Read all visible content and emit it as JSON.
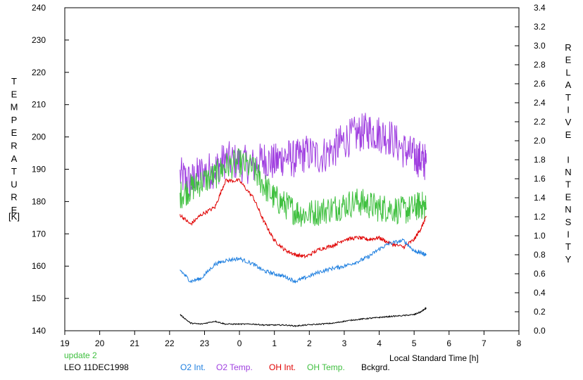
{
  "chart_data": {
    "type": "line",
    "left_axis": {
      "label": "TEMPERATURE",
      "unit": "[K]",
      "ylim": [
        140,
        240
      ],
      "ticks": [
        140,
        150,
        160,
        170,
        180,
        190,
        200,
        210,
        220,
        230,
        240
      ],
      "tick_labels": [
        "140",
        "150",
        "160",
        "170",
        "180",
        "190",
        "200",
        "210",
        "220",
        "230",
        "240"
      ]
    },
    "right_axis": {
      "label": "RELATIVE INTENSITY",
      "ylim": [
        0.0,
        3.4
      ],
      "ticks": [
        0.0,
        0.2,
        0.4,
        0.6,
        0.8,
        1.0,
        1.2,
        1.4,
        1.6,
        1.8,
        2.0,
        2.2,
        2.4,
        2.6,
        2.8,
        3.0,
        3.2,
        3.4
      ],
      "tick_labels": [
        "0.0",
        "0.2",
        "0.4",
        "0.6",
        "0.8",
        "1.0",
        "1.2",
        "1.4",
        "1.6",
        "1.8",
        "2.0",
        "2.2",
        "2.4",
        "2.6",
        "2.8",
        "3.0",
        "3.2",
        "3.4"
      ]
    },
    "x_axis": {
      "label": "Local Standard Time [h]",
      "xlim": [
        19,
        32
      ],
      "ticks": [
        19,
        20,
        21,
        22,
        23,
        24,
        25,
        26,
        27,
        28,
        29,
        30,
        31,
        32
      ],
      "tick_labels": [
        "19",
        "20",
        "21",
        "22",
        "23",
        "0",
        "1",
        "2",
        "3",
        "4",
        "5",
        "6",
        "7",
        "8"
      ]
    },
    "series": [
      {
        "name": "O2 Int.",
        "axis": "right",
        "color": "#2080e0",
        "x": [
          22.3,
          22.6,
          22.9,
          23.3,
          23.6,
          24.0,
          24.4,
          24.7,
          25.0,
          25.3,
          25.6,
          25.9,
          26.3,
          26.7,
          27.0,
          27.4,
          27.7,
          28.0,
          28.3,
          28.7,
          29.0,
          29.2,
          29.35
        ],
        "y": [
          0.64,
          0.52,
          0.55,
          0.7,
          0.74,
          0.76,
          0.7,
          0.63,
          0.6,
          0.57,
          0.52,
          0.56,
          0.62,
          0.66,
          0.68,
          0.73,
          0.78,
          0.86,
          0.92,
          0.95,
          0.84,
          0.82,
          0.8
        ]
      },
      {
        "name": "O2 Temp.",
        "axis": "left",
        "color": "#a040e0",
        "x": [
          22.3,
          22.6,
          22.9,
          23.3,
          23.6,
          24.0,
          24.4,
          24.7,
          25.0,
          25.3,
          25.6,
          25.9,
          26.3,
          26.7,
          27.0,
          27.4,
          27.7,
          28.0,
          28.3,
          28.7,
          29.0,
          29.2,
          29.35
        ],
        "y": [
          188,
          186,
          189,
          190,
          193,
          192,
          191,
          193,
          192,
          194,
          193,
          195,
          194,
          196,
          199,
          201,
          202,
          201,
          200,
          196,
          194,
          193,
          192
        ]
      },
      {
        "name": "OH Int.",
        "axis": "right",
        "color": "#e00000",
        "x": [
          22.3,
          22.6,
          22.9,
          23.3,
          23.6,
          24.0,
          24.4,
          24.7,
          25.0,
          25.3,
          25.6,
          25.9,
          26.3,
          26.7,
          27.0,
          27.4,
          27.7,
          28.0,
          28.3,
          28.7,
          29.0,
          29.2,
          29.35
        ],
        "y": [
          1.22,
          1.12,
          1.22,
          1.3,
          1.58,
          1.58,
          1.4,
          1.15,
          0.95,
          0.85,
          0.8,
          0.78,
          0.86,
          0.9,
          0.96,
          0.98,
          0.96,
          0.98,
          0.92,
          0.88,
          0.96,
          1.08,
          1.2
        ]
      },
      {
        "name": "OH Temp.",
        "axis": "left",
        "color": "#40c040",
        "x": [
          22.3,
          22.6,
          22.9,
          23.3,
          23.6,
          24.0,
          24.4,
          24.7,
          25.0,
          25.3,
          25.6,
          25.9,
          26.3,
          26.7,
          27.0,
          27.4,
          27.7,
          28.0,
          28.3,
          28.7,
          29.0,
          29.2,
          29.35
        ],
        "y": [
          182,
          184,
          186,
          188,
          191,
          192,
          190,
          185,
          181,
          179,
          177,
          176,
          177,
          178,
          179,
          180,
          179,
          178,
          178,
          177,
          178,
          179,
          178
        ]
      },
      {
        "name": "Bckgrd.",
        "axis": "right",
        "color": "#000000",
        "x": [
          22.3,
          22.6,
          22.9,
          23.3,
          23.6,
          24.0,
          24.4,
          24.7,
          25.0,
          25.3,
          25.6,
          25.9,
          26.3,
          26.7,
          27.0,
          27.4,
          27.7,
          28.0,
          28.3,
          28.7,
          29.0,
          29.2,
          29.35
        ],
        "y": [
          0.17,
          0.08,
          0.07,
          0.1,
          0.07,
          0.07,
          0.07,
          0.06,
          0.06,
          0.06,
          0.05,
          0.06,
          0.07,
          0.08,
          0.1,
          0.12,
          0.13,
          0.14,
          0.15,
          0.16,
          0.17,
          0.2,
          0.24
        ]
      }
    ],
    "legend_placement": "bottom",
    "grid": false
  },
  "footer": {
    "update": "update 2",
    "station": "LEO 11DEC1998"
  }
}
